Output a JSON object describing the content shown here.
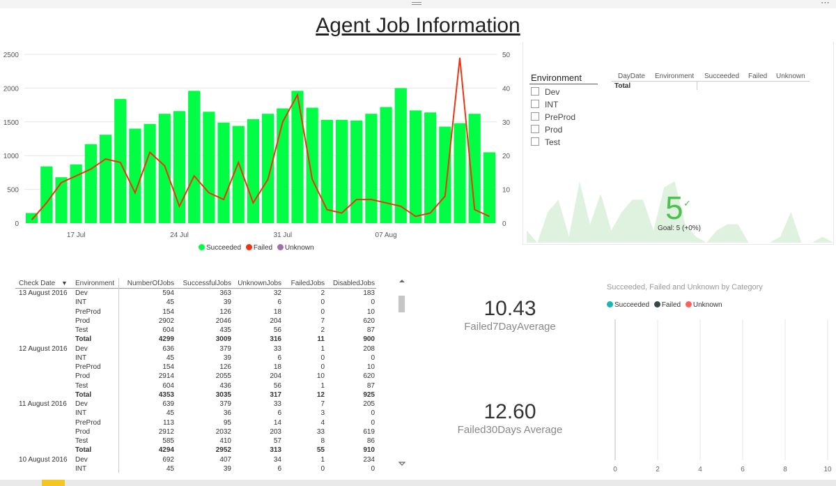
{
  "title": "Agent Job Information",
  "colors": {
    "succeeded": "#00ff44",
    "failed": "#ee3311",
    "unknown": "#a26ea8",
    "kpi_green": "#4ec04e"
  },
  "chart_data": [
    {
      "type": "bar",
      "name": "combo",
      "x_ticks": [
        "17 Jul",
        "24 Jul",
        "31 Jul",
        "07 Aug"
      ],
      "y_ticks_left": [
        "0",
        "500",
        "1000",
        "1500",
        "2000",
        "2500"
      ],
      "y_ticks_right": [
        "0",
        "10",
        "20",
        "30",
        "40",
        "50"
      ],
      "ylim_left": [
        0,
        2500
      ],
      "ylim_right": [
        0,
        50
      ],
      "series": [
        {
          "name": "Succeeded",
          "values": [
            150,
            840,
            680,
            870,
            1170,
            1310,
            1840,
            1400,
            1470,
            1620,
            1660,
            1960,
            1650,
            1490,
            1440,
            1540,
            1620,
            1700,
            1960,
            1710,
            1530,
            1530,
            1520,
            1620,
            1720,
            2000,
            1670,
            1640,
            1430,
            1480,
            1620,
            1050
          ]
        },
        {
          "name": "Failed",
          "values": [
            1,
            6,
            12,
            14,
            16,
            19,
            18,
            9,
            21,
            17,
            5,
            14,
            9,
            7,
            18,
            6,
            13,
            30,
            38,
            13,
            4,
            3,
            7,
            7,
            6,
            5,
            2,
            3,
            8,
            49,
            4,
            2
          ]
        }
      ],
      "legend": [
        "Succeeded",
        "Failed",
        "Unknown"
      ]
    },
    {
      "type": "area",
      "name": "kpi-sparkline",
      "values": [
        2,
        0,
        5,
        7,
        1,
        10,
        3,
        8,
        2,
        5,
        7,
        7,
        2,
        9,
        10,
        3,
        1,
        0,
        2,
        3,
        3,
        0,
        0,
        0,
        1,
        5,
        0,
        0,
        1,
        0
      ]
    },
    {
      "type": "bar",
      "name": "category-chart",
      "title": "Succeeded, Failed and Unknown by Category",
      "legend": [
        "Succeeded",
        "Failed",
        "Unknown"
      ],
      "x_ticks": [
        "0",
        "2",
        "4",
        "6",
        "8",
        "10"
      ],
      "xlim": [
        0,
        10
      ]
    }
  ],
  "slicer": {
    "title": "Environment",
    "items": [
      "Dev",
      "INT",
      "PreProd",
      "Prod",
      "Test"
    ]
  },
  "matrix": {
    "headers": [
      "DayDate",
      "Environment",
      "Succeeded",
      "Failed",
      "Unknown"
    ],
    "total_label": "Total"
  },
  "kpi": {
    "value": "5",
    "goal": "Goal: 5 (+0%)"
  },
  "table": {
    "headers": [
      "Check Date",
      "Environment",
      "NumberOfJobs",
      "SuccessfulJobs",
      "UnknownJobs",
      "FailedJobs",
      "DisabledJobs"
    ],
    "rows": [
      [
        "13 August 2016",
        "Dev",
        "594",
        "363",
        "32",
        "2",
        "183"
      ],
      [
        "",
        "INT",
        "45",
        "39",
        "6",
        "0",
        "0"
      ],
      [
        "",
        "PreProd",
        "154",
        "126",
        "18",
        "0",
        "10"
      ],
      [
        "",
        "Prod",
        "2902",
        "2046",
        "204",
        "7",
        "620"
      ],
      [
        "",
        "Test",
        "604",
        "435",
        "56",
        "2",
        "87"
      ],
      [
        "",
        "Total",
        "4299",
        "3009",
        "316",
        "11",
        "900"
      ],
      [
        "12 August 2016",
        "Dev",
        "636",
        "379",
        "33",
        "1",
        "208"
      ],
      [
        "",
        "INT",
        "45",
        "39",
        "6",
        "0",
        "0"
      ],
      [
        "",
        "PreProd",
        "154",
        "126",
        "18",
        "0",
        "10"
      ],
      [
        "",
        "Prod",
        "2914",
        "2055",
        "204",
        "10",
        "620"
      ],
      [
        "",
        "Test",
        "604",
        "436",
        "56",
        "1",
        "87"
      ],
      [
        "",
        "Total",
        "4353",
        "3035",
        "317",
        "12",
        "925"
      ],
      [
        "11 August 2016",
        "Dev",
        "639",
        "379",
        "33",
        "7",
        "205"
      ],
      [
        "",
        "INT",
        "45",
        "36",
        "6",
        "3",
        "0"
      ],
      [
        "",
        "PreProd",
        "113",
        "95",
        "14",
        "4",
        "0"
      ],
      [
        "",
        "Prod",
        "2912",
        "2032",
        "203",
        "33",
        "619"
      ],
      [
        "",
        "Test",
        "585",
        "410",
        "57",
        "8",
        "86"
      ],
      [
        "",
        "Total",
        "4294",
        "2952",
        "313",
        "55",
        "910"
      ],
      [
        "10 August 2016",
        "Dev",
        "692",
        "407",
        "34",
        "1",
        "234"
      ],
      [
        "",
        "INT",
        "45",
        "39",
        "6",
        "0",
        "0"
      ]
    ]
  },
  "cards": [
    {
      "value": "10.43",
      "label": "Failed7DayAverage"
    },
    {
      "value": "12.60",
      "label": "Failed30Days Average"
    }
  ]
}
